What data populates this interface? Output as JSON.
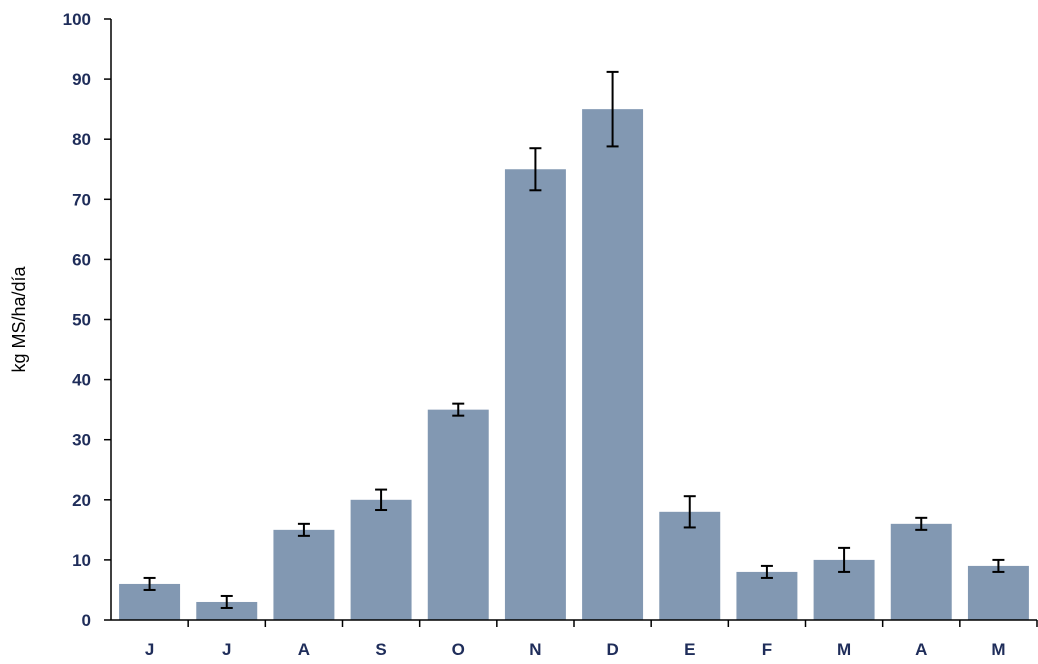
{
  "chart_data": {
    "type": "bar",
    "categories": [
      "J",
      "J",
      "A",
      "S",
      "O",
      "N",
      "D",
      "E",
      "F",
      "M",
      "A",
      "M"
    ],
    "values": [
      6,
      3,
      15,
      20,
      35,
      75,
      85,
      18,
      8,
      10,
      16,
      9
    ],
    "error": [
      1.0,
      1.0,
      1.0,
      1.7,
      1.0,
      3.5,
      6.2,
      2.6,
      1.0,
      2.0,
      1.0,
      1.0
    ],
    "xlabel": "",
    "ylabel": "kg MS/ha/día",
    "ylim": [
      0,
      100
    ],
    "yticks": [
      0,
      10,
      20,
      30,
      40,
      50,
      60,
      70,
      80,
      90,
      100
    ],
    "grid": false,
    "bar_color": "#8298b2",
    "label_color": "#1f2d5a"
  }
}
